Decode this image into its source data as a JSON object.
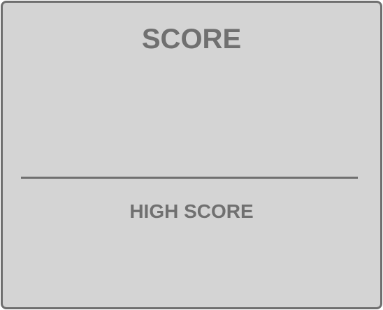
{
  "score_panel": {
    "score_label": "SCORE",
    "score_value": "",
    "high_score_label": "HIGH SCORE",
    "high_score_value": ""
  },
  "colors": {
    "panel_background": "#d4d4d4",
    "border": "#6f6f6f",
    "text": "#707070"
  }
}
